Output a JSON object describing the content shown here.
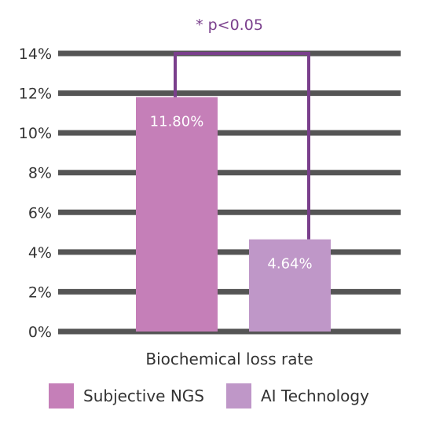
{
  "chart_data": {
    "type": "bar",
    "categories": [
      "Biochemical loss rate"
    ],
    "series": [
      {
        "name": "Subjective NGS",
        "values": [
          11.8
        ],
        "color": "#c57fb8",
        "data_label": "11.80%"
      },
      {
        "name": "AI Technology",
        "values": [
          4.64
        ],
        "color": "#bf97c8",
        "data_label": "4.64%"
      }
    ],
    "ylim": [
      0,
      14
    ],
    "yticks": [
      "0%",
      "2%",
      "4%",
      "6%",
      "8%",
      "10%",
      "12%",
      "14%"
    ],
    "ytick_values": [
      0,
      2,
      4,
      6,
      8,
      10,
      12,
      14
    ],
    "grid": true,
    "grid_color": "#555555",
    "legend_position": "bottom",
    "annotation": {
      "text": "* p<0.05",
      "bracket_level": 14,
      "color": "#7a3f8c"
    }
  }
}
